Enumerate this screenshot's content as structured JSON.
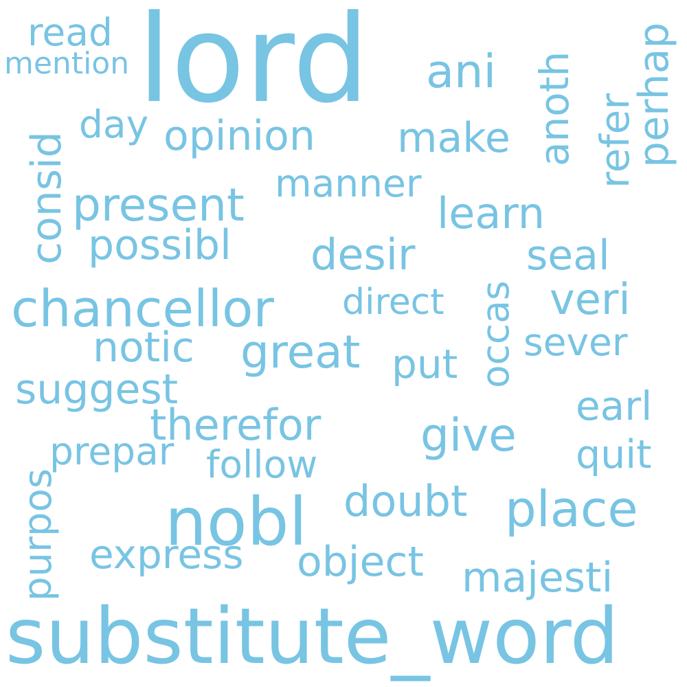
{
  "word_cloud": {
    "color": "#78c4e3",
    "background": "#ffffff",
    "words": {
      "lord": "lord",
      "substitute_word": "substitute_word",
      "nobl": "nobl",
      "chancellor": "chancellor",
      "place": "place",
      "read": "read",
      "mention": "mention",
      "ani": "ani",
      "anoth": "anoth",
      "perhap": "perhap",
      "refer": "refer",
      "consid": "consid",
      "day": "day",
      "opinion": "opinion",
      "make": "make",
      "manner": "manner",
      "present": "present",
      "learn": "learn",
      "possibl": "possibl",
      "desir": "desir",
      "seal": "seal",
      "occas": "occas",
      "direct": "direct",
      "veri": "veri",
      "notic": "notic",
      "great": "great",
      "put": "put",
      "sever": "sever",
      "suggest": "suggest",
      "therefor": "therefor",
      "give": "give",
      "earl": "earl",
      "prepar": "prepar",
      "follow": "follow",
      "quit": "quit",
      "purpos": "purpos",
      "doubt": "doubt",
      "express": "express",
      "object": "object",
      "majesti": "majesti"
    }
  }
}
